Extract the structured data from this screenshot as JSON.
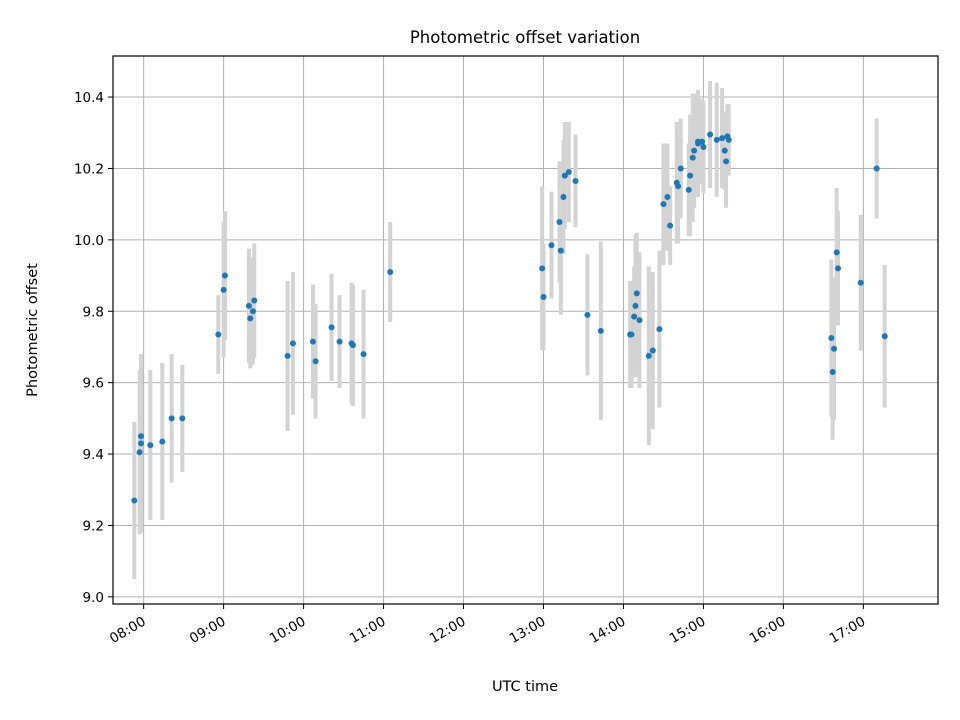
{
  "chart_data": {
    "type": "scatter",
    "title": "Photometric offset variation",
    "xlabel": "UTC time",
    "ylabel": "Photometric offset",
    "xlim": [
      "07:37",
      "17:56"
    ],
    "ylim": [
      8.98,
      10.515
    ],
    "grid": true,
    "x_ticks": [
      "08:00",
      "09:00",
      "10:00",
      "11:00",
      "12:00",
      "13:00",
      "14:00",
      "15:00",
      "16:00",
      "17:00"
    ],
    "y_ticks": [
      "9.0",
      "9.2",
      "9.4",
      "9.6",
      "9.8",
      "10.0",
      "10.2",
      "10.4"
    ],
    "colors": {
      "points": "#1f77b4",
      "errorbars": "#d3d3d3",
      "grid": "#b0b0b0"
    },
    "series": [
      {
        "x": [
          "07:53",
          "07:57",
          "07:58",
          "07:58",
          "08:05",
          "08:14",
          "08:21",
          "08:29",
          "08:56",
          "09:00",
          "09:01",
          "09:19",
          "09:20",
          "09:22",
          "09:23",
          "09:48",
          "09:52",
          "10:07",
          "10:09",
          "10:21",
          "10:27",
          "10:36",
          "10:37",
          "10:45",
          "11:05",
          "12:59",
          "13:00",
          "13:06",
          "13:12",
          "13:13",
          "13:15",
          "13:16",
          "13:19",
          "13:24",
          "13:33",
          "13:43",
          "14:05",
          "14:06",
          "14:08",
          "14:09",
          "14:10",
          "14:12",
          "14:19",
          "14:22",
          "14:27",
          "14:30",
          "14:33",
          "14:35",
          "14:40",
          "14:41",
          "14:43",
          "14:49",
          "14:50",
          "14:52",
          "14:53",
          "14:56",
          "14:56",
          "14:59",
          "15:00",
          "15:05",
          "15:10",
          "15:14",
          "15:16",
          "15:17",
          "15:18",
          "15:19",
          "16:36",
          "16:37",
          "16:38",
          "16:40",
          "16:41",
          "16:58",
          "17:10",
          "17:16"
        ],
        "y": [
          9.27,
          9.405,
          9.45,
          9.43,
          9.425,
          9.435,
          9.5,
          9.5,
          9.735,
          9.86,
          9.9,
          9.815,
          9.78,
          9.8,
          9.83,
          9.675,
          9.71,
          9.715,
          9.66,
          9.755,
          9.715,
          9.71,
          9.705,
          9.68,
          9.91,
          9.92,
          9.84,
          9.985,
          10.05,
          9.97,
          10.12,
          10.18,
          10.19,
          10.165,
          9.79,
          9.745,
          9.735,
          9.735,
          9.785,
          9.815,
          9.85,
          9.775,
          9.675,
          9.69,
          9.75,
          10.1,
          10.12,
          10.04,
          10.16,
          10.15,
          10.2,
          10.14,
          10.18,
          10.23,
          10.25,
          10.275,
          10.27,
          10.275,
          10.26,
          10.295,
          10.28,
          10.285,
          10.25,
          10.22,
          10.29,
          10.28,
          9.725,
          9.63,
          9.695,
          9.965,
          9.92,
          9.88,
          10.2,
          9.73
        ],
        "yerr": [
          0.22,
          0.23,
          0.21,
          0.25,
          0.21,
          0.22,
          0.18,
          0.15,
          0.11,
          0.19,
          0.18,
          0.16,
          0.14,
          0.15,
          0.16,
          0.21,
          0.2,
          0.16,
          0.16,
          0.15,
          0.13,
          0.17,
          0.17,
          0.18,
          0.14,
          0.23,
          0.15,
          0.15,
          0.17,
          0.18,
          0.16,
          0.15,
          0.14,
          0.13,
          0.17,
          0.25,
          0.15,
          0.15,
          0.14,
          0.2,
          0.17,
          0.19,
          0.25,
          0.22,
          0.22,
          0.17,
          0.15,
          0.11,
          0.17,
          0.16,
          0.14,
          0.13,
          0.17,
          0.18,
          0.16,
          0.14,
          0.15,
          0.12,
          0.13,
          0.15,
          0.16,
          0.14,
          0.11,
          0.13,
          0.09,
          0.1,
          0.22,
          0.19,
          0.2,
          0.18,
          0.16,
          0.19,
          0.14,
          0.2
        ]
      }
    ]
  }
}
